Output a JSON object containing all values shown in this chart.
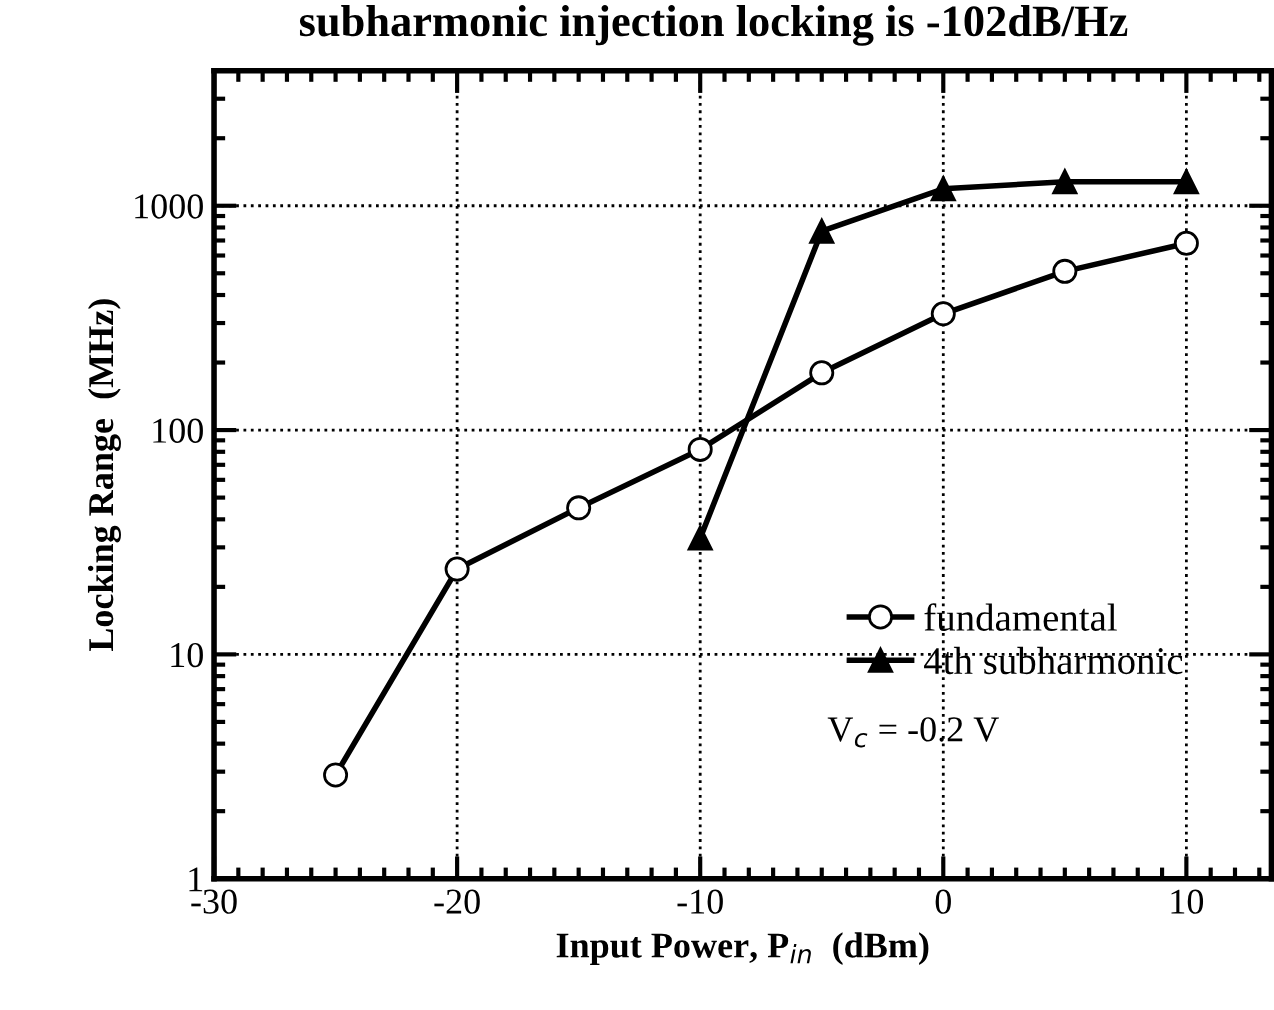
{
  "chart_data": {
    "type": "line",
    "xlabel": "Input Power, P$_{in}$  (dBm)",
    "ylabel": "Locking Range  (MHz)",
    "annotations": [
      "subharmonic injection locking is -102dB/Hz",
      "V$_{c}$ = -0.2 V"
    ],
    "series": [
      {
        "name": "fundamental",
        "color": "#000000",
        "marker": "circle",
        "x": [
          -25,
          -20,
          -15,
          -10,
          -5,
          0,
          5,
          10
        ],
        "values": [
          2.9,
          24,
          45,
          82,
          180,
          330,
          510,
          680
        ]
      },
      {
        "name": "4th subharmonic",
        "color": "#000000",
        "marker": "triangle",
        "x": [
          -10,
          -5,
          0,
          5,
          10
        ],
        "values": [
          33,
          770,
          1190,
          1280,
          1280
        ]
      }
    ],
    "log": "y",
    "xlim": [
      -30,
      13.5
    ],
    "xticks": [
      -30,
      -20,
      -10,
      0,
      10
    ],
    "ylim": [
      1,
      4000
    ],
    "yticks": [
      1,
      10,
      100,
      1000
    ],
    "grid": true,
    "line_style": "solid",
    "legend": "bottom right"
  }
}
